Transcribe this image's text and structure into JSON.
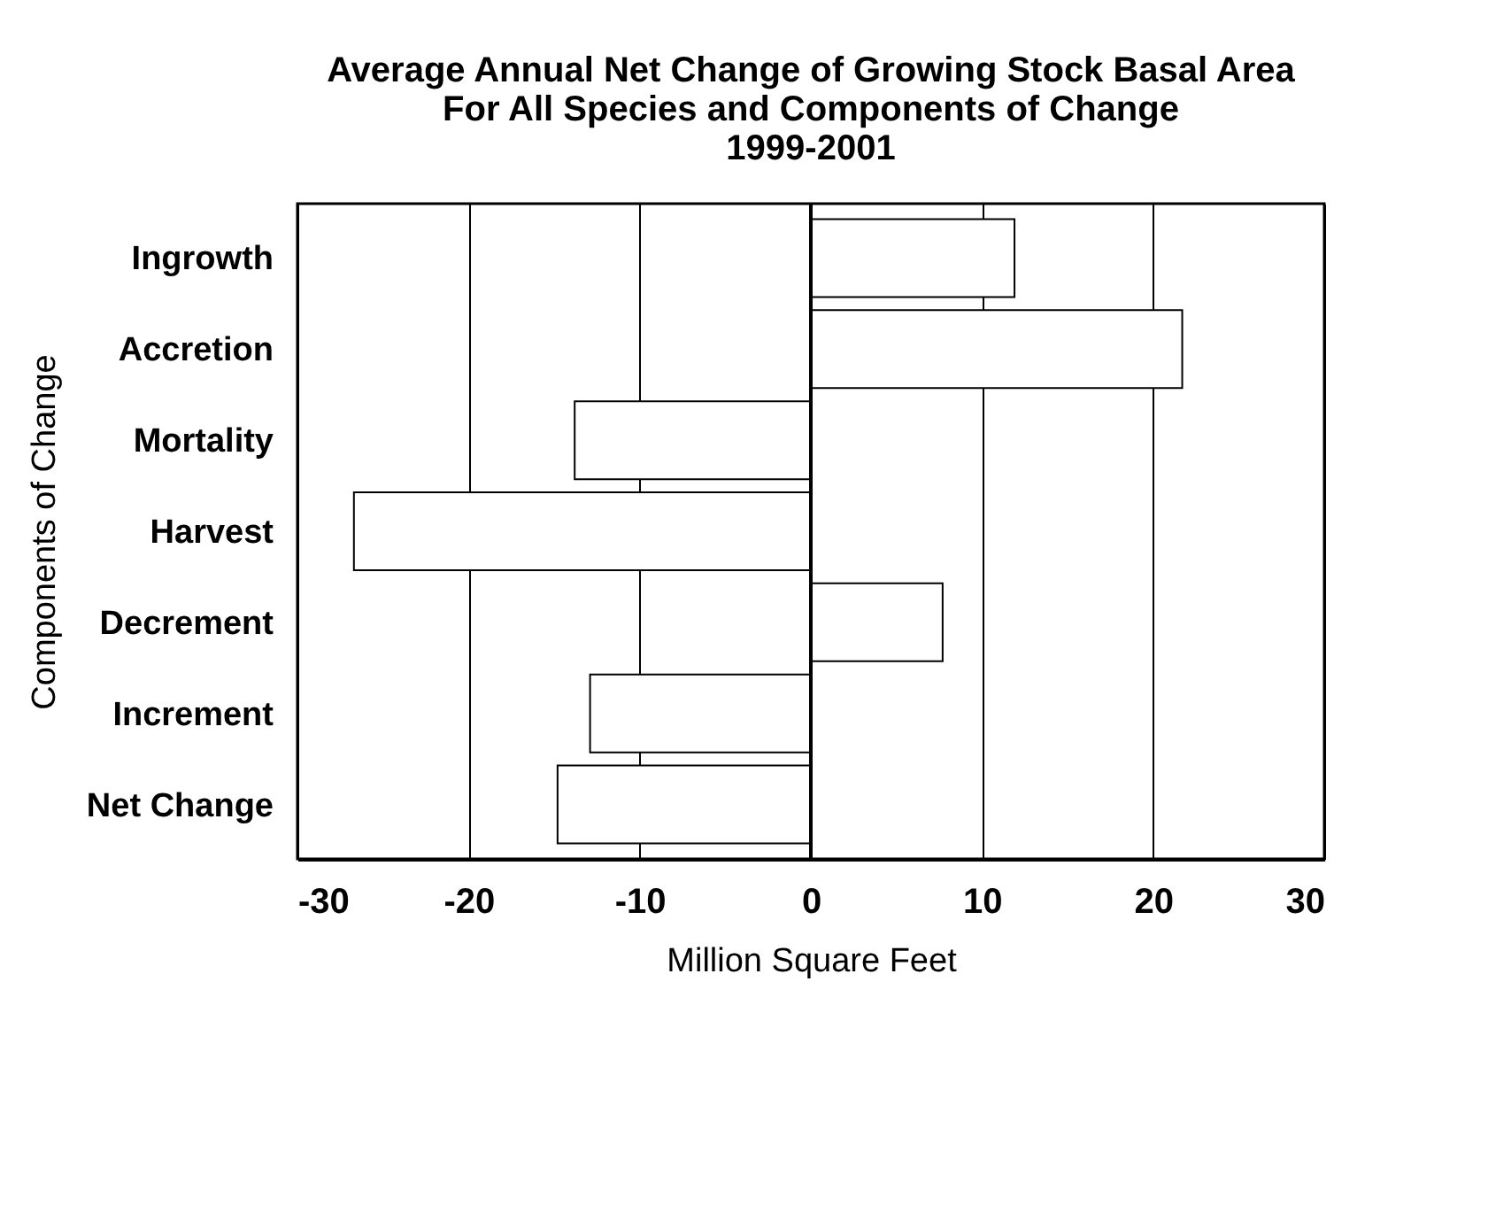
{
  "chart_data": {
    "type": "bar",
    "orientation": "horizontal",
    "title": [
      "Average Annual Net Change of Growing Stock Basal Area",
      "For All Species and Components of Change",
      "1999-2001"
    ],
    "xlabel": "Million Square Feet",
    "ylabel": "Components of Change",
    "categories": [
      "Ingrowth",
      "Accretion",
      "Mortality",
      "Harvest",
      "Decrement",
      "Increment",
      "Net Change"
    ],
    "values": [
      11.9,
      21.7,
      -13.8,
      -26.7,
      7.7,
      -12.9,
      -14.8
    ],
    "color": "#ffffff",
    "xlim": [
      -30,
      30
    ],
    "xticks": [
      -30,
      -20,
      -10,
      0,
      10,
      20,
      30
    ],
    "grid": "x"
  }
}
